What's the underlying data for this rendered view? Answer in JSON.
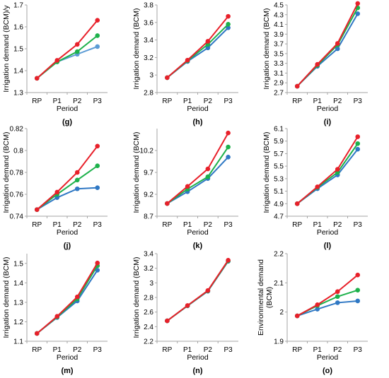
{
  "colors": {
    "red": "#e8202a",
    "green": "#1db14b",
    "blue": "#2f78c4",
    "lightblue": "#5b9bd5",
    "axis": "#a6a6a6"
  },
  "chart_data": [
    {
      "type": "line",
      "panel_label": "(g)",
      "xlabel": "Period",
      "ylabel": "Irrigation demand (BCM)/y",
      "categories": [
        "RP",
        "P1",
        "P2",
        "P3"
      ],
      "ylim": [
        1.3,
        1.7
      ],
      "yticks": [
        "1.3",
        "1.4",
        "1.5",
        "1.6",
        "1.7"
      ],
      "tick_values": [
        1.3,
        1.4,
        1.5,
        1.6,
        1.7
      ],
      "series": [
        {
          "color": "#5b9bd5",
          "values": [
            1.365,
            1.44,
            1.475,
            1.51
          ]
        },
        {
          "color": "#1db14b",
          "values": [
            1.365,
            1.44,
            1.487,
            1.56
          ]
        },
        {
          "color": "#e8202a",
          "values": [
            1.365,
            1.447,
            1.52,
            1.63
          ]
        }
      ]
    },
    {
      "type": "line",
      "panel_label": "(h)",
      "xlabel": "Period",
      "ylabel": "Irrigation demand (BCM)",
      "categories": [
        "RP",
        "P1",
        "P2",
        "P3"
      ],
      "ylim": [
        2.8,
        3.8
      ],
      "yticks": [
        "2.8",
        "3",
        "3.2",
        "3.4",
        "3.6",
        "3.8"
      ],
      "tick_values": [
        2.8,
        3.0,
        3.2,
        3.4,
        3.6,
        3.8
      ],
      "series": [
        {
          "color": "#2f78c4",
          "values": [
            2.97,
            3.155,
            3.31,
            3.54
          ]
        },
        {
          "color": "#1db14b",
          "values": [
            2.97,
            3.163,
            3.35,
            3.58
          ]
        },
        {
          "color": "#e8202a",
          "values": [
            2.97,
            3.17,
            3.385,
            3.67
          ]
        }
      ]
    },
    {
      "type": "line",
      "panel_label": "(i)",
      "xlabel": "Period",
      "ylabel": "Irrigation demand (BCM)",
      "categories": [
        "RP",
        "P1",
        "P2",
        "P3"
      ],
      "ylim": [
        2.7,
        4.5
      ],
      "yticks": [
        "2.7",
        "2.9",
        "3.1",
        "3.3",
        "3.5",
        "3.7",
        "3.9",
        "4.1",
        "4.3",
        "4.5"
      ],
      "tick_values": [
        2.7,
        2.9,
        3.1,
        3.3,
        3.5,
        3.7,
        3.9,
        4.1,
        4.3,
        4.5
      ],
      "series": [
        {
          "color": "#2f78c4",
          "values": [
            2.83,
            3.24,
            3.6,
            4.32
          ]
        },
        {
          "color": "#1db14b",
          "values": [
            2.83,
            3.26,
            3.68,
            4.44
          ]
        },
        {
          "color": "#e8202a",
          "values": [
            2.83,
            3.28,
            3.71,
            4.53
          ]
        }
      ]
    },
    {
      "type": "line",
      "panel_label": "(j)",
      "xlabel": "Period",
      "ylabel": "Irrigation demand (BCM)",
      "categories": [
        "RP",
        "P1",
        "P2",
        "P3"
      ],
      "ylim": [
        0.74,
        0.82
      ],
      "yticks": [
        "0.74",
        "0.76",
        "0.78",
        "0.8",
        "0.82"
      ],
      "tick_values": [
        0.74,
        0.76,
        0.78,
        0.8,
        0.82
      ],
      "series": [
        {
          "color": "#2f78c4",
          "values": [
            0.746,
            0.757,
            0.765,
            0.766
          ]
        },
        {
          "color": "#1db14b",
          "values": [
            0.746,
            0.76,
            0.773,
            0.786
          ]
        },
        {
          "color": "#e8202a",
          "values": [
            0.746,
            0.762,
            0.78,
            0.804
          ]
        }
      ]
    },
    {
      "type": "line",
      "panel_label": "(k)",
      "xlabel": "Period",
      "ylabel": "Irrigation demand (BCM)",
      "categories": [
        "RP",
        "P1",
        "P2",
        "P3"
      ],
      "ylim": [
        8.7,
        10.7
      ],
      "yticks": [
        "8.7",
        "9.2",
        "9.7",
        "10.2"
      ],
      "tick_values": [
        8.7,
        9.2,
        9.7,
        10.2
      ],
      "series": [
        {
          "color": "#2f78c4",
          "values": [
            8.99,
            9.26,
            9.56,
            10.05
          ]
        },
        {
          "color": "#1db14b",
          "values": [
            8.99,
            9.32,
            9.6,
            10.28
          ]
        },
        {
          "color": "#e8202a",
          "values": [
            8.99,
            9.38,
            9.78,
            10.6
          ]
        }
      ]
    },
    {
      "type": "line",
      "panel_label": "(l)",
      "xlabel": "Period",
      "ylabel": "Irrigation demand (BCM)",
      "categories": [
        "RP",
        "P1",
        "P2",
        "P3"
      ],
      "ylim": [
        4.7,
        6.1
      ],
      "yticks": [
        "4.7",
        "4.9",
        "5.1",
        "5.3",
        "5.5",
        "5.7",
        "5.9",
        "6.1"
      ],
      "tick_values": [
        4.7,
        4.9,
        5.1,
        5.3,
        5.5,
        5.7,
        5.9,
        6.1
      ],
      "series": [
        {
          "color": "#2f78c4",
          "values": [
            4.9,
            5.14,
            5.36,
            5.77
          ]
        },
        {
          "color": "#1db14b",
          "values": [
            4.9,
            5.16,
            5.4,
            5.86
          ]
        },
        {
          "color": "#e8202a",
          "values": [
            4.9,
            5.17,
            5.45,
            5.97
          ]
        }
      ]
    },
    {
      "type": "line",
      "panel_label": "(m)",
      "xlabel": "Period",
      "ylabel": "Irrigation demand (BCM)",
      "categories": [
        "RP",
        "P1",
        "P2",
        "P3"
      ],
      "ylim": [
        1.1,
        1.55
      ],
      "yticks": [
        "1.1",
        "1.2",
        "1.3",
        "1.4",
        "1.5"
      ],
      "tick_values": [
        1.1,
        1.2,
        1.3,
        1.4,
        1.5
      ],
      "series": [
        {
          "color": "#2f78c4",
          "values": [
            1.14,
            1.222,
            1.307,
            1.465
          ]
        },
        {
          "color": "#1db14b",
          "values": [
            1.14,
            1.225,
            1.318,
            1.488
          ]
        },
        {
          "color": "#e8202a",
          "values": [
            1.14,
            1.228,
            1.328,
            1.502
          ]
        }
      ]
    },
    {
      "type": "line",
      "panel_label": "(n)",
      "xlabel": "Period",
      "ylabel": "Irrigation demand (BCM)",
      "categories": [
        "RP",
        "P1",
        "P2",
        "P3"
      ],
      "ylim": [
        2.2,
        3.4
      ],
      "yticks": [
        "2.2",
        "2.4",
        "2.6",
        "2.8",
        "3",
        "3.2",
        "3.4"
      ],
      "tick_values": [
        2.2,
        2.4,
        2.6,
        2.8,
        3.0,
        3.2,
        3.4
      ],
      "series": [
        {
          "color": "#2f78c4",
          "values": [
            2.48,
            2.685,
            2.885,
            3.295
          ]
        },
        {
          "color": "#1db14b",
          "values": [
            2.48,
            2.687,
            2.89,
            3.3
          ]
        },
        {
          "color": "#e8202a",
          "values": [
            2.48,
            2.69,
            2.895,
            3.31
          ]
        }
      ]
    },
    {
      "type": "line",
      "panel_label": "(o)",
      "xlabel": "Period",
      "ylabel": "Environmental demand (BCM)",
      "categories": [
        "RP",
        "P1",
        "P2",
        "P3"
      ],
      "ylim": [
        1.9,
        2.2
      ],
      "yticks": [
        "1.9",
        "2",
        "2.1",
        "2.2"
      ],
      "tick_values": [
        1.9,
        2.0,
        2.1,
        2.2
      ],
      "series": [
        {
          "color": "#2f78c4",
          "values": [
            1.987,
            2.01,
            2.032,
            2.038
          ]
        },
        {
          "color": "#1db14b",
          "values": [
            1.987,
            2.022,
            2.053,
            2.075
          ]
        },
        {
          "color": "#e8202a",
          "values": [
            1.987,
            2.025,
            2.07,
            2.127
          ]
        }
      ]
    }
  ]
}
